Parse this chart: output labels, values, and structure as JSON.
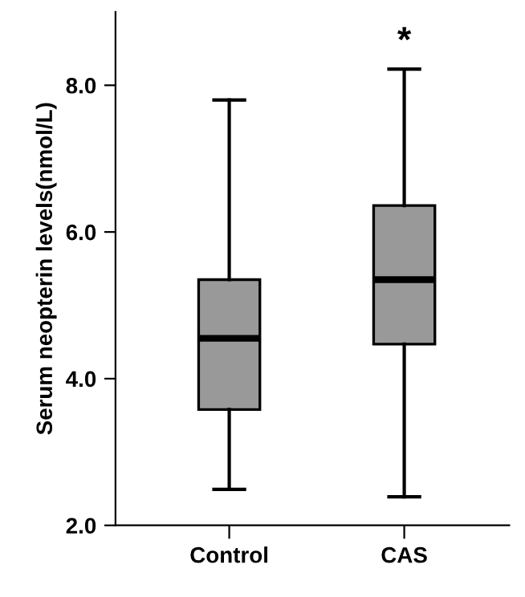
{
  "chart_data": {
    "type": "box",
    "ylabel": "Serum neopterin levels(nmol/L)",
    "categories": [
      "Control",
      "CAS"
    ],
    "color": "#999999",
    "boxes": [
      {
        "low": 2.49,
        "q1": 3.58,
        "median": 4.55,
        "q3": 5.35,
        "high": 7.8
      },
      {
        "low": 2.39,
        "q1": 4.47,
        "median": 5.35,
        "q3": 6.36,
        "high": 8.22
      }
    ],
    "ylim": [
      2.0,
      9.0
    ],
    "yticks": [
      {
        "value": 2,
        "label": "2.0"
      },
      {
        "value": 4,
        "label": "4.0"
      },
      {
        "value": 6,
        "label": "6.0"
      },
      {
        "value": 8,
        "label": "8.0"
      }
    ],
    "annotations": [
      "*"
    ],
    "grid": false,
    "legend": false
  }
}
